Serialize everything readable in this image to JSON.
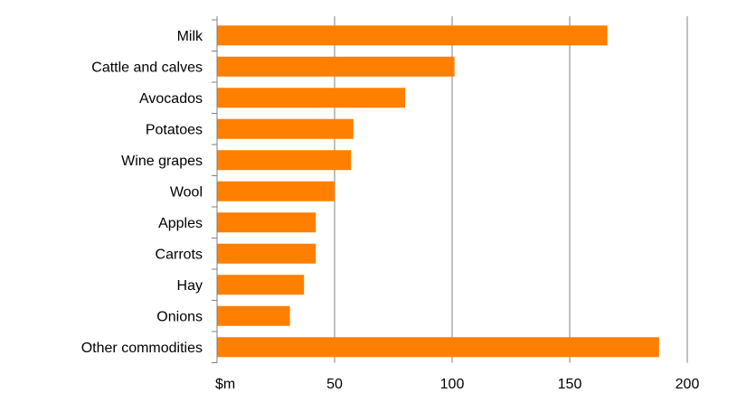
{
  "chart_data": {
    "type": "bar",
    "orientation": "horizontal",
    "categories": [
      "Milk",
      "Cattle and calves",
      "Avocados",
      "Potatoes",
      "Wine grapes",
      "Wool",
      "Apples",
      "Carrots",
      "Hay",
      "Onions",
      "Other commodities"
    ],
    "values": [
      166,
      101,
      80,
      58,
      57,
      50,
      42,
      42,
      37,
      31,
      188
    ],
    "xlim": [
      0,
      200
    ],
    "xticks": [
      {
        "value": 0,
        "label": "$m"
      },
      {
        "value": 50,
        "label": "50"
      },
      {
        "value": 100,
        "label": "100"
      },
      {
        "value": 150,
        "label": "150"
      },
      {
        "value": 200,
        "label": "200"
      }
    ],
    "title": "",
    "xlabel": "",
    "ylabel": "",
    "grid": "vertical",
    "legend": "none",
    "bar_color": "#FF7F00",
    "grid_color": "#808080",
    "axis_color": "#808080"
  }
}
